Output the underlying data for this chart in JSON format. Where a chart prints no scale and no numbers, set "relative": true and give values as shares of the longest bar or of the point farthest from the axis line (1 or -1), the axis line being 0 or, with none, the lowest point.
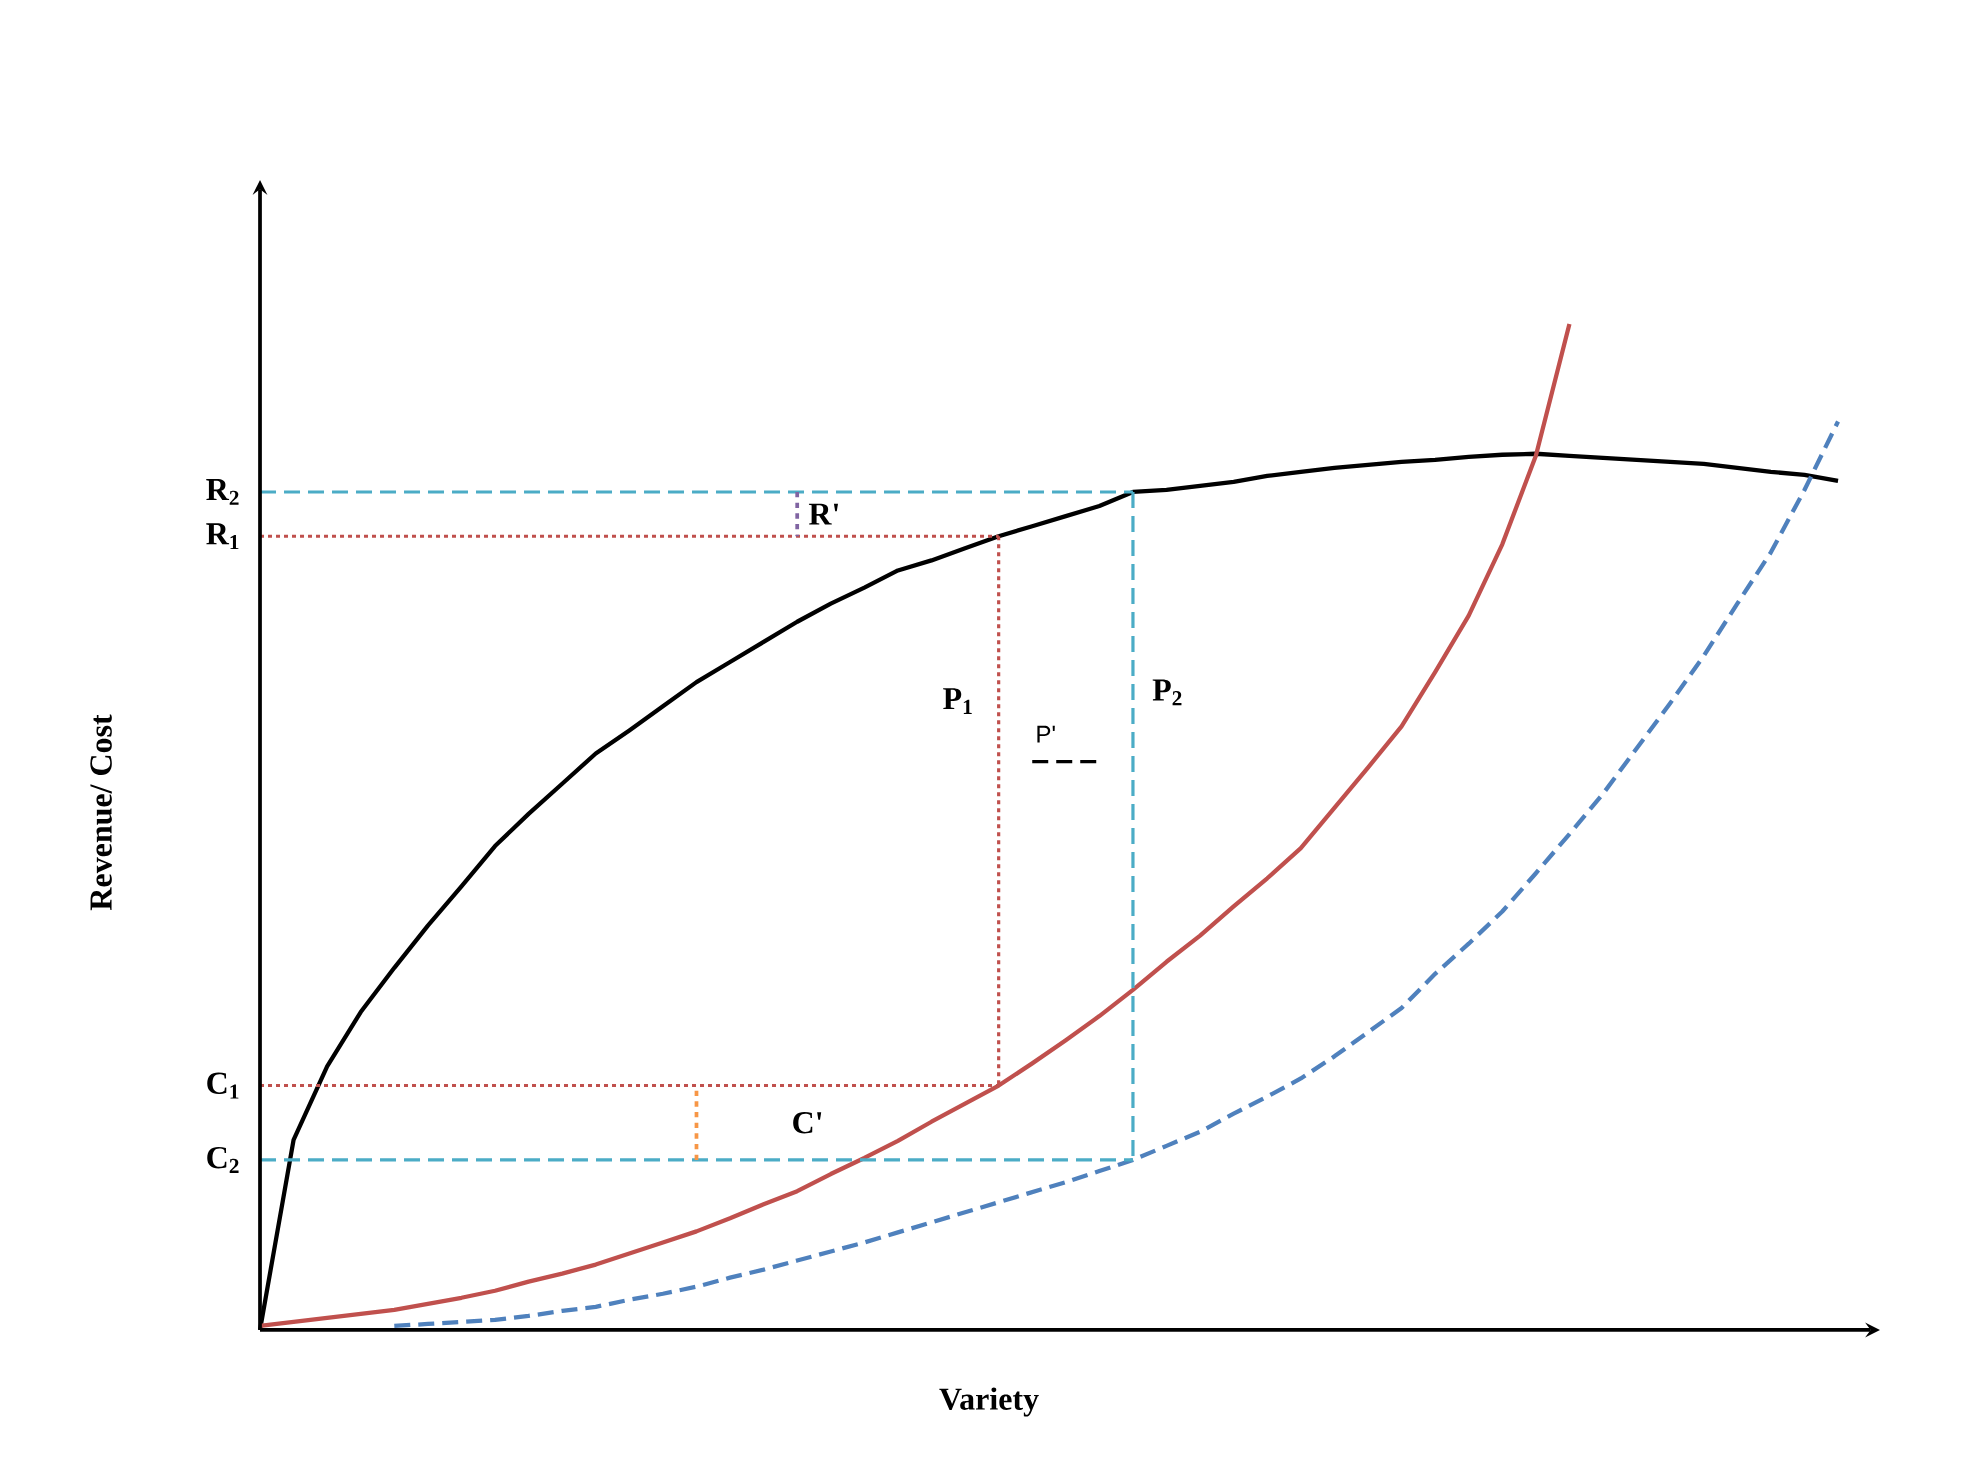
{
  "chart_data": {
    "type": "line",
    "relative": true,
    "xlabel": "Variety",
    "ylabel": "Revenue/ Cost",
    "categories": [
      null,
      null,
      null,
      null,
      null,
      null,
      null,
      null,
      null,
      null,
      null,
      null,
      null,
      null,
      null,
      null,
      null,
      null,
      null,
      null,
      null,
      null,
      null,
      null,
      null,
      null,
      null,
      null,
      null,
      null,
      null,
      null,
      null,
      null,
      null,
      null,
      null,
      null,
      null,
      null,
      null,
      null,
      null,
      null,
      null,
      null,
      null,
      null,
      null
    ],
    "series": [
      {
        "color": "#000000",
        "line_style": "solid",
        "values": [
          0,
          0.189,
          0.262,
          0.316,
          0.36,
          0.402,
          0.441,
          0.481,
          0.513,
          0.543,
          0.573,
          0.596,
          0.62,
          0.644,
          0.664,
          0.684,
          0.704,
          0.722,
          0.738,
          0.755,
          0.765,
          0.777,
          0.789,
          0.799,
          0.809,
          0.819,
          0.833,
          0.835,
          0.839,
          0.843,
          0.849,
          0.853,
          0.857,
          0.86,
          0.863,
          0.865,
          0.868,
          0.87,
          0.871,
          0.869,
          0.867,
          0.865,
          0.863,
          0.861,
          0.857,
          0.853,
          0.85,
          0.844,
          null
        ]
      },
      {
        "color": "#c0504d",
        "line_style": "solid",
        "values": [
          0.004,
          0.008,
          0.012,
          0.016,
          0.02,
          0.026,
          0.032,
          0.039,
          0.048,
          0.056,
          0.065,
          0.076,
          0.087,
          0.098,
          0.111,
          0.125,
          0.138,
          0.155,
          0.171,
          0.188,
          0.207,
          0.225,
          0.243,
          0.265,
          0.288,
          0.312,
          0.338,
          0.366,
          0.392,
          0.421,
          0.449,
          0.479,
          0.519,
          0.559,
          0.6,
          0.654,
          0.71,
          0.781,
          0.869,
          1,
          null,
          null,
          null,
          null,
          null,
          null,
          null,
          null,
          null
        ]
      },
      {
        "color": "#4f81bd",
        "line_style": "dashed",
        "values": [
          null,
          null,
          null,
          null,
          0.004,
          0.006,
          0.008,
          0.01,
          0.014,
          0.019,
          0.023,
          0.03,
          0.036,
          0.043,
          0.052,
          0.06,
          0.069,
          0.078,
          0.087,
          0.097,
          0.107,
          0.117,
          0.127,
          0.137,
          0.147,
          0.158,
          0.169,
          0.183,
          0.197,
          0.215,
          0.232,
          0.25,
          0.272,
          0.296,
          0.32,
          0.354,
          0.384,
          0.416,
          0.454,
          0.493,
          0.533,
          0.578,
          0.623,
          0.67,
          0.722,
          0.773,
          0.835,
          0.903,
          null
        ]
      },
      {
        "color": "#c0504d",
        "line_style": "dotted",
        "values": [
          0.789,
          0.789,
          0.789,
          0.789,
          0.789,
          0.789,
          0.789,
          0.789,
          0.789,
          0.789,
          0.789,
          0.789,
          0.789,
          0.789,
          0.789,
          0.789,
          0.789,
          0.789,
          0.789,
          0.789,
          0.789,
          0.789,
          0.789,
          null,
          null,
          null,
          null,
          null,
          null,
          null,
          null,
          null,
          null,
          null,
          null,
          null,
          null,
          null,
          null,
          null,
          null,
          null,
          null,
          null,
          null,
          null,
          null,
          null,
          null
        ]
      },
      {
        "color": "#c0504d",
        "line_style": "dotted",
        "values": [
          0.243,
          0.243,
          0.243,
          0.243,
          0.243,
          0.243,
          0.243,
          0.243,
          0.243,
          0.243,
          0.243,
          0.243,
          0.243,
          0.243,
          0.243,
          0.243,
          0.243,
          0.243,
          0.243,
          0.243,
          0.243,
          0.243,
          0.243,
          null,
          null,
          null,
          null,
          null,
          null,
          null,
          null,
          null,
          null,
          null,
          null,
          null,
          null,
          null,
          null,
          null,
          null,
          null,
          null,
          null,
          null,
          null,
          null,
          null,
          null
        ]
      },
      {
        "color": "#4bacc6",
        "line_style": "dashed",
        "values": [
          0.833,
          0.833,
          0.833,
          0.833,
          0.833,
          0.833,
          0.833,
          0.833,
          0.833,
          0.833,
          0.833,
          0.833,
          0.833,
          0.833,
          0.833,
          0.833,
          0.833,
          0.833,
          0.833,
          0.833,
          0.833,
          0.833,
          0.833,
          0.833,
          0.833,
          0.833,
          0.833,
          null,
          null,
          null,
          null,
          null,
          null,
          null,
          null,
          null,
          null,
          null,
          null,
          null,
          null,
          null,
          null,
          null,
          null,
          null,
          null,
          null,
          null
        ]
      },
      {
        "color": "#4bacc6",
        "line_style": "dashed",
        "values": [
          0.169,
          0.169,
          0.169,
          0.169,
          0.169,
          0.169,
          0.169,
          0.169,
          0.169,
          0.169,
          0.169,
          0.169,
          0.169,
          0.169,
          0.169,
          0.169,
          0.169,
          0.169,
          0.169,
          0.169,
          0.169,
          0.169,
          0.169,
          0.169,
          0.169,
          0.169,
          0.169,
          null,
          null,
          null,
          null,
          null,
          null,
          null,
          null,
          null,
          null,
          null,
          null,
          null,
          null,
          null,
          null,
          null,
          null,
          null,
          null,
          null,
          null
        ]
      },
      {
        "color": "#000000",
        "line_style": "dashed",
        "values": [
          null,
          null,
          null,
          null,
          null,
          null,
          null,
          null,
          null,
          null,
          null,
          null,
          null,
          null,
          null,
          null,
          null,
          null,
          null,
          null,
          null,
          null,
          null,
          0.565,
          0.565,
          0.565,
          null,
          null,
          null,
          null,
          null,
          null,
          null,
          null,
          null,
          null,
          null,
          null,
          null,
          null,
          null,
          null,
          null,
          null,
          null,
          null,
          null,
          null,
          null
        ]
      }
    ],
    "annotations": [
      "R$_{2}$",
      "R$_{1}$",
      "C$_{1}$",
      "C$_{2}$",
      "P$_{1}$",
      "P$_{2}$",
      "R'",
      "C'",
      "P'"
    ]
  }
}
